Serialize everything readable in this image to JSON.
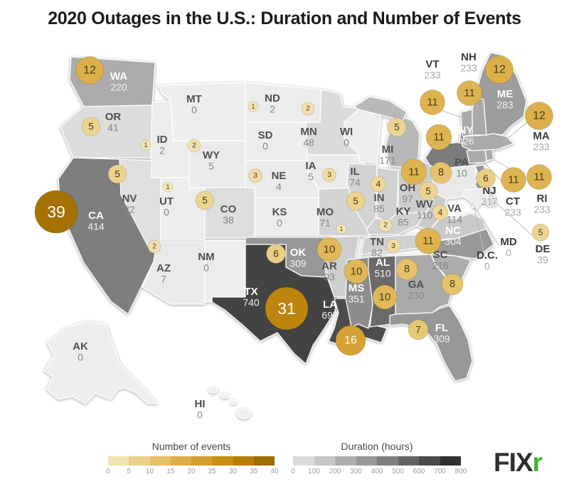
{
  "title": "2020 Outages in the U.S.: Duration and Number of Events",
  "legends": {
    "events": {
      "label": "Number of events",
      "ticks": [
        "0",
        "5",
        "10",
        "15",
        "20",
        "25",
        "30",
        "35",
        "40"
      ],
      "colors": [
        "#f3e3b4",
        "#eccf8b",
        "#e4c066",
        "#dcae46",
        "#d29e2b",
        "#c78e14",
        "#b87f06",
        "#9e6c00"
      ]
    },
    "duration": {
      "label": "Duration (hours)",
      "ticks": [
        "0",
        "100",
        "200",
        "300",
        "400",
        "500",
        "600",
        "700",
        "800"
      ],
      "colors": [
        "#dcdcdc",
        "#c6c6c6",
        "#aeaeae",
        "#969696",
        "#7e7e7e",
        "#646464",
        "#4a4a4a",
        "#303030"
      ]
    }
  },
  "logo": {
    "fix": "FIX",
    "r": "r",
    "dark": "#2d2d2d",
    "green": "#3cb02a"
  },
  "chart_data": {
    "type": "choropleth-map",
    "region": "United States",
    "year": "2020",
    "metrics": [
      "Duration (hours)",
      "Number of events"
    ],
    "states": [
      {
        "abbr": "WA",
        "duration": 220,
        "events": 12,
        "fill": "#acacac",
        "circle_color": "#dcaf4a"
      },
      {
        "abbr": "OR",
        "duration": 41,
        "events": 5,
        "fill": "#dddddd",
        "circle_color": "#ecd390"
      },
      {
        "abbr": "CA",
        "duration": 414,
        "events": 39,
        "fill": "#7e7e7e",
        "circle_color": "#a57102"
      },
      {
        "abbr": "ID",
        "duration": 2,
        "events": 1,
        "fill": "#ececec",
        "circle_color": "#f4e4b8"
      },
      {
        "abbr": "NV",
        "duration": 32,
        "events": 5,
        "fill": "#e0e0e0",
        "circle_color": "#ecd390"
      },
      {
        "abbr": "UT",
        "duration": 0,
        "events": 1,
        "fill": "#ededed",
        "circle_color": "#f4e4b8"
      },
      {
        "abbr": "AZ",
        "duration": 7,
        "events": 2,
        "fill": "#eaeaea",
        "circle_color": "#f2e0ae"
      },
      {
        "abbr": "MT",
        "duration": 0,
        "events": 0,
        "fill": "#ededed",
        "circle_color": null
      },
      {
        "abbr": "WY",
        "duration": 5,
        "events": 2,
        "fill": "#ebebeb",
        "circle_color": "#f2e0ae"
      },
      {
        "abbr": "CO",
        "duration": 38,
        "events": 5,
        "fill": "#dedede",
        "circle_color": "#ecd390"
      },
      {
        "abbr": "NM",
        "duration": 0,
        "events": 0,
        "fill": "#ededed",
        "circle_color": null
      },
      {
        "abbr": "ND",
        "duration": 2,
        "events": 1,
        "fill": "#ececec",
        "circle_color": "#f4e4b8"
      },
      {
        "abbr": "SD",
        "duration": 0,
        "events": 0,
        "fill": "#ededed",
        "circle_color": null
      },
      {
        "abbr": "NE",
        "duration": 4,
        "events": 3,
        "fill": "#ebebeb",
        "circle_color": "#f0dca4"
      },
      {
        "abbr": "KS",
        "duration": 0,
        "events": 0,
        "fill": "#ededed",
        "circle_color": null
      },
      {
        "abbr": "OK",
        "duration": 309,
        "events": 6,
        "fill": "#979797",
        "circle_color": "#e9cd84"
      },
      {
        "abbr": "TX",
        "duration": 740,
        "events": 31,
        "fill": "#434343",
        "circle_color": "#bd850d"
      },
      {
        "abbr": "MN",
        "duration": 48,
        "events": 2,
        "fill": "#dbdbdb",
        "circle_color": "#f2e0ae"
      },
      {
        "abbr": "IA",
        "duration": 5,
        "events": 3,
        "fill": "#ebebeb",
        "circle_color": "#f0dca4"
      },
      {
        "abbr": "MO",
        "duration": 71,
        "events": 1,
        "fill": "#d4d4d4",
        "circle_color": "#f4e4b8"
      },
      {
        "abbr": "AR",
        "duration": 93,
        "events": 10,
        "fill": "#cecece",
        "circle_color": "#e0b85a"
      },
      {
        "abbr": "LA",
        "duration": 697,
        "events": 16,
        "fill": "#4c4c4c",
        "circle_color": "#d5a034"
      },
      {
        "abbr": "WI",
        "duration": 0,
        "events": 0,
        "fill": "#ededed",
        "circle_color": null
      },
      {
        "abbr": "IL",
        "duration": 74,
        "events": 5,
        "fill": "#d3d3d3",
        "circle_color": "#ecd390"
      },
      {
        "abbr": "IN",
        "duration": 85,
        "events": 4,
        "fill": "#d1d1d1",
        "circle_color": "#eed79a"
      },
      {
        "abbr": "MI",
        "duration": 171,
        "events": 5,
        "fill": "#b9b9b9",
        "circle_color": "#ecd390"
      },
      {
        "abbr": "OH",
        "duration": 97,
        "events": 11,
        "fill": "#cdcdcd",
        "circle_color": "#deb452"
      },
      {
        "abbr": "KY",
        "duration": 85,
        "events": 2,
        "fill": "#d1d1d1",
        "circle_color": "#f2e0ae"
      },
      {
        "abbr": "TN",
        "duration": 82,
        "events": 3,
        "fill": "#d1d1d1",
        "circle_color": "#f0dca4"
      },
      {
        "abbr": "MS",
        "duration": 351,
        "events": 10,
        "fill": "#8d8d8d",
        "circle_color": "#e0b85a"
      },
      {
        "abbr": "AL",
        "duration": 510,
        "events": 10,
        "fill": "#6a6a6a",
        "circle_color": "#e0b85a"
      },
      {
        "abbr": "GA",
        "duration": 230,
        "events": 8,
        "fill": "#aaaaaa",
        "circle_color": "#e5c36c"
      },
      {
        "abbr": "SC",
        "duration": 216,
        "events": 8,
        "fill": "#adadad",
        "circle_color": "#e5c36c"
      },
      {
        "abbr": "FL",
        "duration": 309,
        "events": 7,
        "fill": "#979797",
        "circle_color": "#e7c878"
      },
      {
        "abbr": "NC",
        "duration": 304,
        "events": 11,
        "fill": "#989898",
        "circle_color": "#deb452"
      },
      {
        "abbr": "VA",
        "duration": 114,
        "events": 4,
        "fill": "#c9c9c9",
        "circle_color": "#eed79a"
      },
      {
        "abbr": "WV",
        "duration": 110,
        "events": 5,
        "fill": "#cacaca",
        "circle_color": "#ecd390"
      },
      {
        "abbr": "PA",
        "duration": 10,
        "events": 8,
        "fill": "#e9e9e9",
        "circle_color": "#e5c36c"
      },
      {
        "abbr": "NY",
        "duration": 426,
        "events": 11,
        "fill": "#7b7b7b",
        "circle_color": "#deb452"
      },
      {
        "abbr": "NJ",
        "duration": 317,
        "events": 6,
        "fill": "#959595",
        "circle_color": "#e9cd84"
      },
      {
        "abbr": "CT",
        "duration": 233,
        "events": 11,
        "fill": "#aaaaaa",
        "circle_color": "#deb452"
      },
      {
        "abbr": "RI",
        "duration": 233,
        "events": 11,
        "fill": "#aaaaaa",
        "circle_color": "#deb452"
      },
      {
        "abbr": "DE",
        "duration": 39,
        "events": 5,
        "fill": "#dedede",
        "circle_color": "#ecd390"
      },
      {
        "abbr": "MD",
        "duration": 0,
        "events": 0,
        "fill": "#ededed",
        "circle_color": null
      },
      {
        "abbr": "DC",
        "label": "D.C.",
        "duration": 0,
        "events": 0,
        "fill": "#ededed",
        "circle_color": null
      },
      {
        "abbr": "VT",
        "duration": 233,
        "events": 11,
        "fill": "#aaaaaa",
        "circle_color": "#deb452"
      },
      {
        "abbr": "NH",
        "duration": 233,
        "events": 11,
        "fill": "#aaaaaa",
        "circle_color": "#deb452"
      },
      {
        "abbr": "ME",
        "duration": 283,
        "events": 12,
        "fill": "#9d9d9d",
        "circle_color": "#dcaf4a"
      },
      {
        "abbr": "MA",
        "duration": 233,
        "events": 12,
        "fill": "#aaaaaa",
        "circle_color": "#dcaf4a"
      },
      {
        "abbr": "AK",
        "duration": 0,
        "events": 0,
        "fill": "#ededed",
        "circle_color": null
      },
      {
        "abbr": "HI",
        "duration": 0,
        "events": 0,
        "fill": "#ededed",
        "circle_color": null
      }
    ]
  }
}
